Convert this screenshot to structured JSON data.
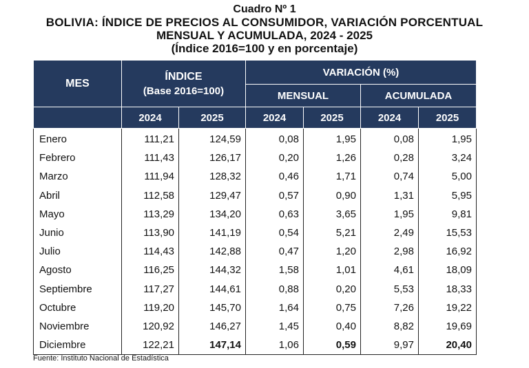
{
  "title": {
    "line1": "Cuadro Nº 1",
    "line2": "BOLIVIA: ÍNDICE DE PRECIOS AL CONSUMIDOR, VARIACIÓN PORCENTUAL",
    "line3": "MENSUAL Y ACUMULADA, 2024 - 2025",
    "line4": "(Índice 2016=100 y en porcentaje)"
  },
  "header": {
    "mes": "MES",
    "indice": "ÍNDICE",
    "indice_base": "(Base 2016=100)",
    "variacion": "VARIACIÓN (%)",
    "mensual": "MENSUAL",
    "acumulada": "ACUMULADA",
    "years": [
      "2024",
      "2025",
      "2024",
      "2025",
      "2024",
      "2025"
    ]
  },
  "rows": [
    {
      "mes": "Enero",
      "idx2024": "111,21",
      "idx2025": "124,59",
      "men2024": "0,08",
      "men2025": "1,95",
      "acu2024": "0,08",
      "acu2025": "1,95"
    },
    {
      "mes": "Febrero",
      "idx2024": "111,43",
      "idx2025": "126,17",
      "men2024": "0,20",
      "men2025": "1,26",
      "acu2024": "0,28",
      "acu2025": "3,24"
    },
    {
      "mes": "Marzo",
      "idx2024": "111,94",
      "idx2025": "128,32",
      "men2024": "0,46",
      "men2025": "1,71",
      "acu2024": "0,74",
      "acu2025": "5,00"
    },
    {
      "mes": "Abril",
      "idx2024": "112,58",
      "idx2025": "129,47",
      "men2024": "0,57",
      "men2025": "0,90",
      "acu2024": "1,31",
      "acu2025": "5,95"
    },
    {
      "mes": "Mayo",
      "idx2024": "113,29",
      "idx2025": "134,20",
      "men2024": "0,63",
      "men2025": "3,65",
      "acu2024": "1,95",
      "acu2025": "9,81"
    },
    {
      "mes": "Junio",
      "idx2024": "113,90",
      "idx2025": "141,19",
      "men2024": "0,54",
      "men2025": "5,21",
      "acu2024": "2,49",
      "acu2025": "15,53"
    },
    {
      "mes": "Julio",
      "idx2024": "114,43",
      "idx2025": "142,88",
      "men2024": "0,47",
      "men2025": "1,20",
      "acu2024": "2,98",
      "acu2025": "16,92"
    },
    {
      "mes": "Agosto",
      "idx2024": "116,25",
      "idx2025": "144,32",
      "men2024": "1,58",
      "men2025": "1,01",
      "acu2024": "4,61",
      "acu2025": "18,09"
    },
    {
      "mes": "Septiembre",
      "idx2024": "117,27",
      "idx2025": "144,61",
      "men2024": "0,88",
      "men2025": "0,20",
      "acu2024": "5,53",
      "acu2025": "18,33"
    },
    {
      "mes": "Octubre",
      "idx2024": "119,20",
      "idx2025": "145,70",
      "men2024": "1,64",
      "men2025": "0,75",
      "acu2024": "7,26",
      "acu2025": "19,22"
    },
    {
      "mes": "Noviembre",
      "idx2024": "120,92",
      "idx2025": "146,27",
      "men2024": "1,45",
      "men2025": "0,40",
      "acu2024": "8,82",
      "acu2025": "19,69"
    },
    {
      "mes": "Diciembre",
      "idx2024": "122,21",
      "idx2025": "147,14",
      "men2024": "1,06",
      "men2025": "0,59",
      "acu2024": "9,97",
      "acu2025": "20,40"
    }
  ],
  "source": "Fuente: Instituto Nacional de Estadística",
  "colors": {
    "header_bg": "#253a5e",
    "header_text": "#ffffff"
  }
}
